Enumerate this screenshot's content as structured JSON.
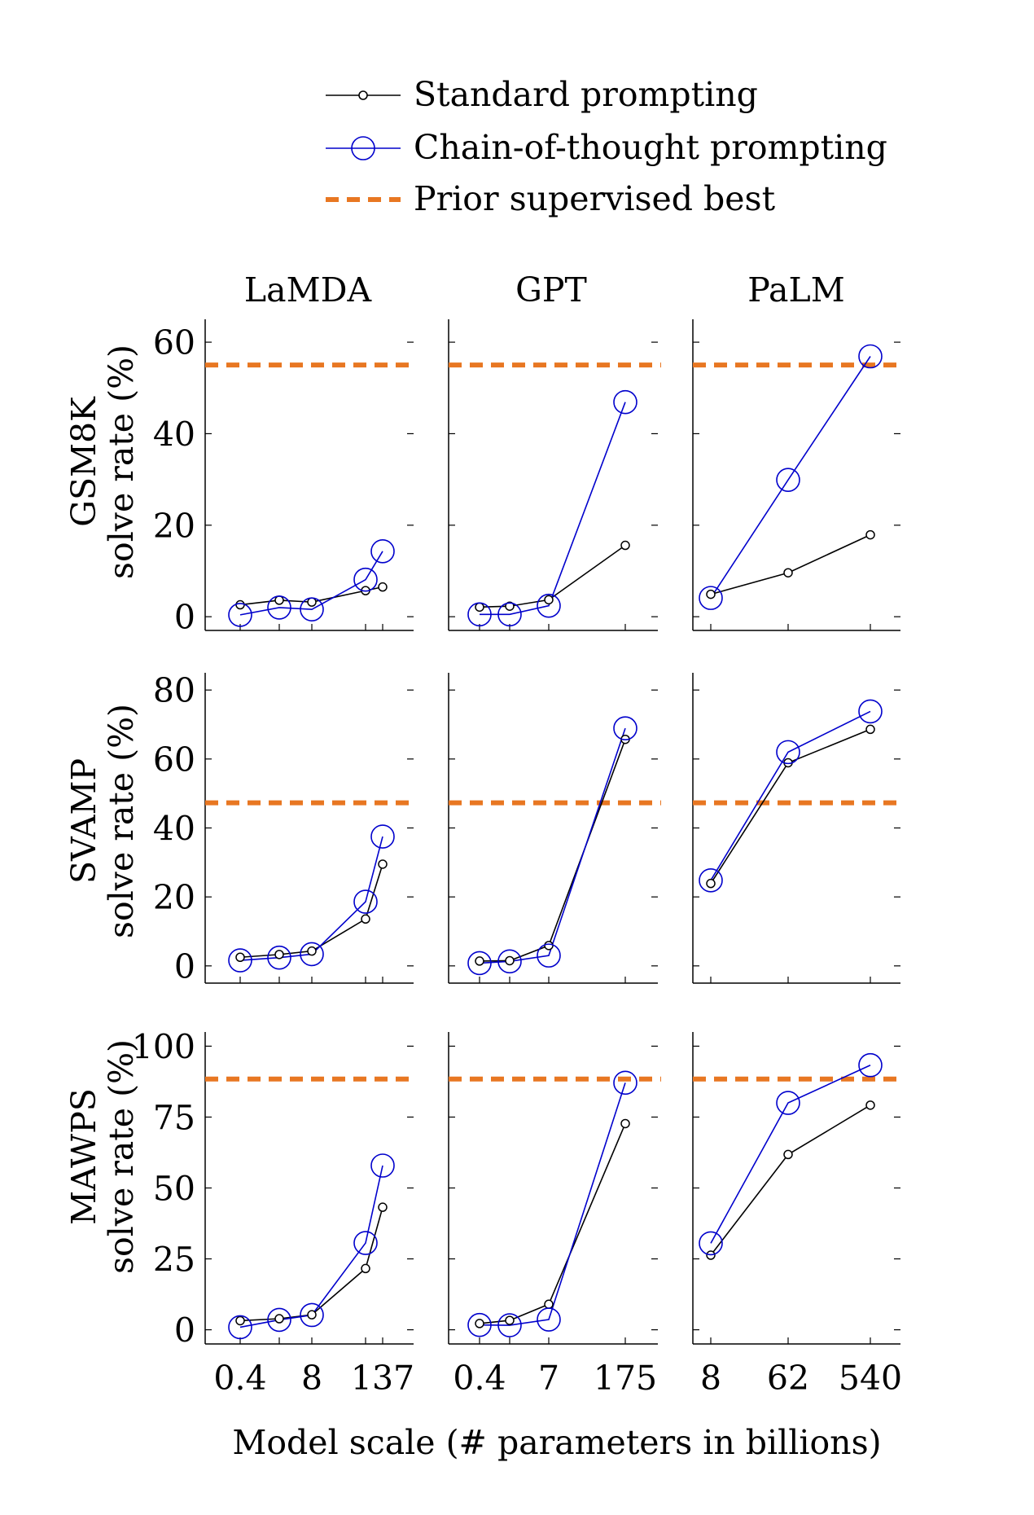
{
  "legend": {
    "standard": "Standard prompting",
    "cot": "Chain-of-thought prompting",
    "prior": "Prior supervised best"
  },
  "xlabel": "Model scale (# parameters in billions)",
  "colors": {
    "standard": "#000000",
    "cot": "#0000cc",
    "prior": "#e87722"
  },
  "columns": [
    "LaMDA",
    "GPT",
    "PaLM"
  ],
  "rows": [
    {
      "dataset": "GSM8K",
      "ylabel": "solve rate (%)",
      "yticks": [
        0,
        20,
        40,
        60
      ]
    },
    {
      "dataset": "SVAMP",
      "ylabel": "solve rate (%)",
      "yticks": [
        0,
        20,
        40,
        60,
        80
      ]
    },
    {
      "dataset": "MAWPS",
      "ylabel": "solve rate (%)",
      "yticks": [
        0,
        25,
        50,
        75,
        100
      ]
    }
  ],
  "xticklabels": [
    [
      "0.4",
      "8",
      "137"
    ],
    [
      "0.4",
      "7",
      "175"
    ],
    [
      "8",
      "62",
      "540"
    ]
  ],
  "chart_data": [
    {
      "type": "line",
      "model": "LaMDA",
      "dataset": "GSM8K",
      "x": [
        "0.4",
        "2",
        "8",
        "68",
        "137"
      ],
      "ylim": [
        -3,
        65
      ],
      "prior_best": 55,
      "series": [
        {
          "name": "Standard prompting",
          "values": [
            2.6,
            3.6,
            3.2,
            5.7,
            6.5
          ]
        },
        {
          "name": "Chain-of-thought prompting",
          "values": [
            0.4,
            2.0,
            1.6,
            8.1,
            14.3
          ]
        }
      ]
    },
    {
      "type": "line",
      "model": "GPT",
      "dataset": "GSM8K",
      "x": [
        "0.4",
        "1.3",
        "7",
        "175"
      ],
      "ylim": [
        -3,
        65
      ],
      "prior_best": 55,
      "series": [
        {
          "name": "Standard prompting",
          "values": [
            2.1,
            2.3,
            3.7,
            15.6
          ]
        },
        {
          "name": "Chain-of-thought prompting",
          "values": [
            0.5,
            0.5,
            2.4,
            46.9
          ]
        }
      ]
    },
    {
      "type": "line",
      "model": "PaLM",
      "dataset": "GSM8K",
      "x": [
        "8",
        "62",
        "540"
      ],
      "ylim": [
        -3,
        65
      ],
      "prior_best": 55,
      "series": [
        {
          "name": "Standard prompting",
          "values": [
            4.9,
            9.6,
            17.9
          ]
        },
        {
          "name": "Chain-of-thought prompting",
          "values": [
            4.1,
            29.9,
            56.9
          ]
        }
      ]
    },
    {
      "type": "line",
      "model": "LaMDA",
      "dataset": "SVAMP",
      "x": [
        "0.4",
        "2",
        "8",
        "68",
        "137"
      ],
      "ylim": [
        -5,
        85
      ],
      "prior_best": 47.3,
      "series": [
        {
          "name": "Standard prompting",
          "values": [
            2.5,
            3.3,
            4.3,
            13.6,
            29.5
          ]
        },
        {
          "name": "Chain-of-thought prompting",
          "values": [
            1.6,
            2.4,
            3.4,
            18.6,
            37.5
          ]
        }
      ]
    },
    {
      "type": "line",
      "model": "GPT",
      "dataset": "SVAMP",
      "x": [
        "0.4",
        "1.3",
        "7",
        "175"
      ],
      "ylim": [
        -5,
        85
      ],
      "prior_best": 47.3,
      "series": [
        {
          "name": "Standard prompting",
          "values": [
            1.4,
            1.5,
            5.9,
            65.7
          ]
        },
        {
          "name": "Chain-of-thought prompting",
          "values": [
            0.8,
            1.3,
            3.0,
            68.9
          ]
        }
      ]
    },
    {
      "type": "line",
      "model": "PaLM",
      "dataset": "SVAMP",
      "x": [
        "8",
        "62",
        "540"
      ],
      "ylim": [
        -5,
        85
      ],
      "prior_best": 47.3,
      "series": [
        {
          "name": "Standard prompting",
          "values": [
            23.9,
            58.9,
            68.6
          ]
        },
        {
          "name": "Chain-of-thought prompting",
          "values": [
            24.8,
            62.0,
            73.8
          ]
        }
      ]
    },
    {
      "type": "line",
      "model": "LaMDA",
      "dataset": "MAWPS",
      "x": [
        "0.4",
        "2",
        "8",
        "68",
        "137"
      ],
      "ylim": [
        -5,
        105
      ],
      "prior_best": 88.4,
      "series": [
        {
          "name": "Standard prompting",
          "values": [
            3.2,
            3.9,
            5.3,
            21.6,
            43.2
          ]
        },
        {
          "name": "Chain-of-thought prompting",
          "values": [
            0.9,
            3.5,
            5.2,
            30.6,
            57.9
          ]
        }
      ]
    },
    {
      "type": "line",
      "model": "GPT",
      "dataset": "MAWPS",
      "x": [
        "0.4",
        "1.3",
        "7",
        "175"
      ],
      "ylim": [
        -5,
        105
      ],
      "prior_best": 88.4,
      "series": [
        {
          "name": "Standard prompting",
          "values": [
            2.2,
            3.3,
            9.0,
            72.7
          ]
        },
        {
          "name": "Chain-of-thought prompting",
          "values": [
            1.7,
            1.6,
            3.6,
            87.1
          ]
        }
      ]
    },
    {
      "type": "line",
      "model": "PaLM",
      "dataset": "MAWPS",
      "x": [
        "8",
        "62",
        "540"
      ],
      "ylim": [
        -5,
        105
      ],
      "prior_best": 88.4,
      "series": [
        {
          "name": "Standard prompting",
          "values": [
            26.3,
            61.8,
            79.2
          ]
        },
        {
          "name": "Chain-of-thought prompting",
          "values": [
            30.5,
            80.0,
            93.3
          ]
        }
      ]
    }
  ]
}
